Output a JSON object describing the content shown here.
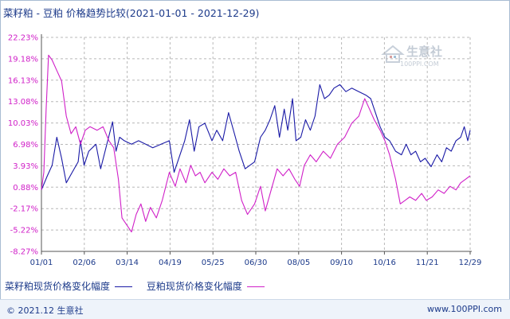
{
  "title": "菜籽粕 - 豆粕 价格趋势比较(2021-01-01 - 2021-12-29)",
  "watermark": {
    "brand": "生意社",
    "url": "100PPI.COM"
  },
  "footer": {
    "left": "© 2021.12 生意社",
    "right": "www.100PPI.com"
  },
  "colors": {
    "series1": "#1a1aa6",
    "series2": "#d020c8",
    "axis": "#555555",
    "grid": "#b8b8b8",
    "text": "#1c3a8a"
  },
  "chart_data": {
    "type": "line",
    "ylim": [
      -8.27,
      22.23
    ],
    "yticks": [
      "22.23%",
      "19.18%",
      "16.13%",
      "13.08%",
      "10.03%",
      "6.98%",
      "3.93%",
      "0.88%",
      "-2.17%",
      "-5.22%",
      "-8.27%"
    ],
    "ytick_values": [
      22.23,
      19.18,
      16.13,
      13.08,
      10.03,
      6.98,
      3.93,
      0.88,
      -2.17,
      -5.22,
      -8.27
    ],
    "xticks": [
      "01/01",
      "02/06",
      "03/14",
      "04/19",
      "05/25",
      "06/30",
      "08/05",
      "09/10",
      "10/16",
      "11/21",
      "12/29"
    ],
    "xlim": [
      "2021-01-01",
      "2021-12-29"
    ],
    "grid": true,
    "legend_position": "bottom",
    "series": [
      {
        "name": "菜籽粕现货价格变化幅度",
        "points": [
          [
            "2021-01-01",
            0.5
          ],
          [
            "2021-01-06",
            2.5
          ],
          [
            "2021-01-10",
            4.0
          ],
          [
            "2021-01-14",
            8.0
          ],
          [
            "2021-01-18",
            5.0
          ],
          [
            "2021-01-22",
            1.5
          ],
          [
            "2021-01-27",
            3.0
          ],
          [
            "2021-02-01",
            4.5
          ],
          [
            "2021-02-03",
            7.5
          ],
          [
            "2021-02-06",
            4.0
          ],
          [
            "2021-02-10",
            6.0
          ],
          [
            "2021-02-16",
            7.0
          ],
          [
            "2021-02-20",
            3.5
          ],
          [
            "2021-02-26",
            7.5
          ],
          [
            "2021-03-02",
            10.2
          ],
          [
            "2021-03-05",
            6.0
          ],
          [
            "2021-03-08",
            8.0
          ],
          [
            "2021-03-12",
            7.5
          ],
          [
            "2021-03-18",
            7.0
          ],
          [
            "2021-03-24",
            7.5
          ],
          [
            "2021-03-30",
            7.0
          ],
          [
            "2021-04-05",
            6.5
          ],
          [
            "2021-04-12",
            7.0
          ],
          [
            "2021-04-19",
            7.5
          ],
          [
            "2021-04-23",
            3.0
          ],
          [
            "2021-04-28",
            5.5
          ],
          [
            "2021-05-02",
            7.5
          ],
          [
            "2021-05-06",
            10.5
          ],
          [
            "2021-05-10",
            6.0
          ],
          [
            "2021-05-14",
            9.5
          ],
          [
            "2021-05-19",
            10.0
          ],
          [
            "2021-05-25",
            7.5
          ],
          [
            "2021-05-29",
            9.0
          ],
          [
            "2021-06-03",
            7.5
          ],
          [
            "2021-06-08",
            11.5
          ],
          [
            "2021-06-13",
            8.5
          ],
          [
            "2021-06-17",
            6.0
          ],
          [
            "2021-06-22",
            3.5
          ],
          [
            "2021-06-30",
            4.5
          ],
          [
            "2021-07-05",
            8.0
          ],
          [
            "2021-07-09",
            9.0
          ],
          [
            "2021-07-13",
            10.5
          ],
          [
            "2021-07-17",
            12.5
          ],
          [
            "2021-07-21",
            8.0
          ],
          [
            "2021-07-25",
            12.0
          ],
          [
            "2021-07-28",
            9.0
          ],
          [
            "2021-08-01",
            13.5
          ],
          [
            "2021-08-04",
            7.5
          ],
          [
            "2021-08-08",
            8.0
          ],
          [
            "2021-08-12",
            10.5
          ],
          [
            "2021-08-16",
            9.0
          ],
          [
            "2021-08-20",
            11.0
          ],
          [
            "2021-08-24",
            15.5
          ],
          [
            "2021-08-28",
            13.5
          ],
          [
            "2021-09-01",
            14.0
          ],
          [
            "2021-09-05",
            15.0
          ],
          [
            "2021-09-10",
            15.5
          ],
          [
            "2021-09-15",
            14.5
          ],
          [
            "2021-09-20",
            15.0
          ],
          [
            "2021-09-26",
            14.5
          ],
          [
            "2021-10-02",
            14.0
          ],
          [
            "2021-10-06",
            13.5
          ],
          [
            "2021-10-10",
            11.5
          ],
          [
            "2021-10-14",
            9.5
          ],
          [
            "2021-10-18",
            8.0
          ],
          [
            "2021-10-22",
            7.5
          ],
          [
            "2021-10-27",
            6.0
          ],
          [
            "2021-11-01",
            5.5
          ],
          [
            "2021-11-05",
            7.0
          ],
          [
            "2021-11-09",
            5.5
          ],
          [
            "2021-11-13",
            6.0
          ],
          [
            "2021-11-17",
            4.5
          ],
          [
            "2021-11-21",
            5.0
          ],
          [
            "2021-11-26",
            3.8
          ],
          [
            "2021-12-01",
            5.5
          ],
          [
            "2021-12-05",
            4.5
          ],
          [
            "2021-12-09",
            6.5
          ],
          [
            "2021-12-13",
            6.0
          ],
          [
            "2021-12-17",
            7.5
          ],
          [
            "2021-12-21",
            8.0
          ],
          [
            "2021-12-24",
            9.5
          ],
          [
            "2021-12-27",
            7.5
          ],
          [
            "2021-12-29",
            9.0
          ]
        ]
      },
      {
        "name": "豆粕现货价格变化幅度",
        "points": [
          [
            "2021-01-01",
            0.5
          ],
          [
            "2021-01-03",
            3.0
          ],
          [
            "2021-01-05",
            12.0
          ],
          [
            "2021-01-07",
            19.7
          ],
          [
            "2021-01-10",
            19.0
          ],
          [
            "2021-01-14",
            17.5
          ],
          [
            "2021-01-18",
            16.0
          ],
          [
            "2021-01-22",
            11.0
          ],
          [
            "2021-01-26",
            8.5
          ],
          [
            "2021-01-30",
            9.5
          ],
          [
            "2021-02-03",
            7.0
          ],
          [
            "2021-02-07",
            9.0
          ],
          [
            "2021-02-11",
            9.5
          ],
          [
            "2021-02-17",
            9.0
          ],
          [
            "2021-02-22",
            9.5
          ],
          [
            "2021-02-27",
            7.5
          ],
          [
            "2021-03-03",
            6.5
          ],
          [
            "2021-03-07",
            2.0
          ],
          [
            "2021-03-10",
            -3.5
          ],
          [
            "2021-03-14",
            -4.5
          ],
          [
            "2021-03-18",
            -5.5
          ],
          [
            "2021-03-22",
            -3.0
          ],
          [
            "2021-03-26",
            -1.5
          ],
          [
            "2021-03-30",
            -4.0
          ],
          [
            "2021-04-03",
            -2.0
          ],
          [
            "2021-04-08",
            -3.5
          ],
          [
            "2021-04-13",
            -1.0
          ],
          [
            "2021-04-19",
            3.0
          ],
          [
            "2021-04-24",
            1.0
          ],
          [
            "2021-04-28",
            3.5
          ],
          [
            "2021-05-03",
            1.5
          ],
          [
            "2021-05-07",
            4.0
          ],
          [
            "2021-05-11",
            2.5
          ],
          [
            "2021-05-15",
            3.0
          ],
          [
            "2021-05-19",
            1.5
          ],
          [
            "2021-05-25",
            3.0
          ],
          [
            "2021-05-30",
            2.0
          ],
          [
            "2021-06-04",
            3.5
          ],
          [
            "2021-06-09",
            2.5
          ],
          [
            "2021-06-14",
            3.0
          ],
          [
            "2021-06-19",
            -1.0
          ],
          [
            "2021-06-24",
            -3.0
          ],
          [
            "2021-06-30",
            -1.5
          ],
          [
            "2021-07-05",
            1.0
          ],
          [
            "2021-07-09",
            -2.5
          ],
          [
            "2021-07-14",
            0.5
          ],
          [
            "2021-07-19",
            3.5
          ],
          [
            "2021-07-24",
            2.5
          ],
          [
            "2021-07-29",
            3.5
          ],
          [
            "2021-08-03",
            2.0
          ],
          [
            "2021-08-07",
            1.0
          ],
          [
            "2021-08-11",
            4.0
          ],
          [
            "2021-08-16",
            5.5
          ],
          [
            "2021-08-21",
            4.5
          ],
          [
            "2021-08-27",
            6.0
          ],
          [
            "2021-09-02",
            5.0
          ],
          [
            "2021-09-08",
            7.0
          ],
          [
            "2021-09-14",
            8.0
          ],
          [
            "2021-09-20",
            10.0
          ],
          [
            "2021-09-26",
            11.0
          ],
          [
            "2021-10-01",
            13.5
          ],
          [
            "2021-10-05",
            12.0
          ],
          [
            "2021-10-09",
            10.5
          ],
          [
            "2021-10-14",
            9.0
          ],
          [
            "2021-10-18",
            7.5
          ],
          [
            "2021-10-22",
            5.5
          ],
          [
            "2021-10-27",
            2.0
          ],
          [
            "2021-10-31",
            -1.5
          ],
          [
            "2021-11-04",
            -1.0
          ],
          [
            "2021-11-08",
            -0.5
          ],
          [
            "2021-11-13",
            -1.0
          ],
          [
            "2021-11-18",
            0.0
          ],
          [
            "2021-11-22",
            -1.0
          ],
          [
            "2021-11-27",
            -0.5
          ],
          [
            "2021-12-02",
            0.5
          ],
          [
            "2021-12-07",
            0.0
          ],
          [
            "2021-12-12",
            1.0
          ],
          [
            "2021-12-17",
            0.5
          ],
          [
            "2021-12-21",
            1.5
          ],
          [
            "2021-12-25",
            2.0
          ],
          [
            "2021-12-29",
            2.5
          ]
        ]
      }
    ]
  }
}
